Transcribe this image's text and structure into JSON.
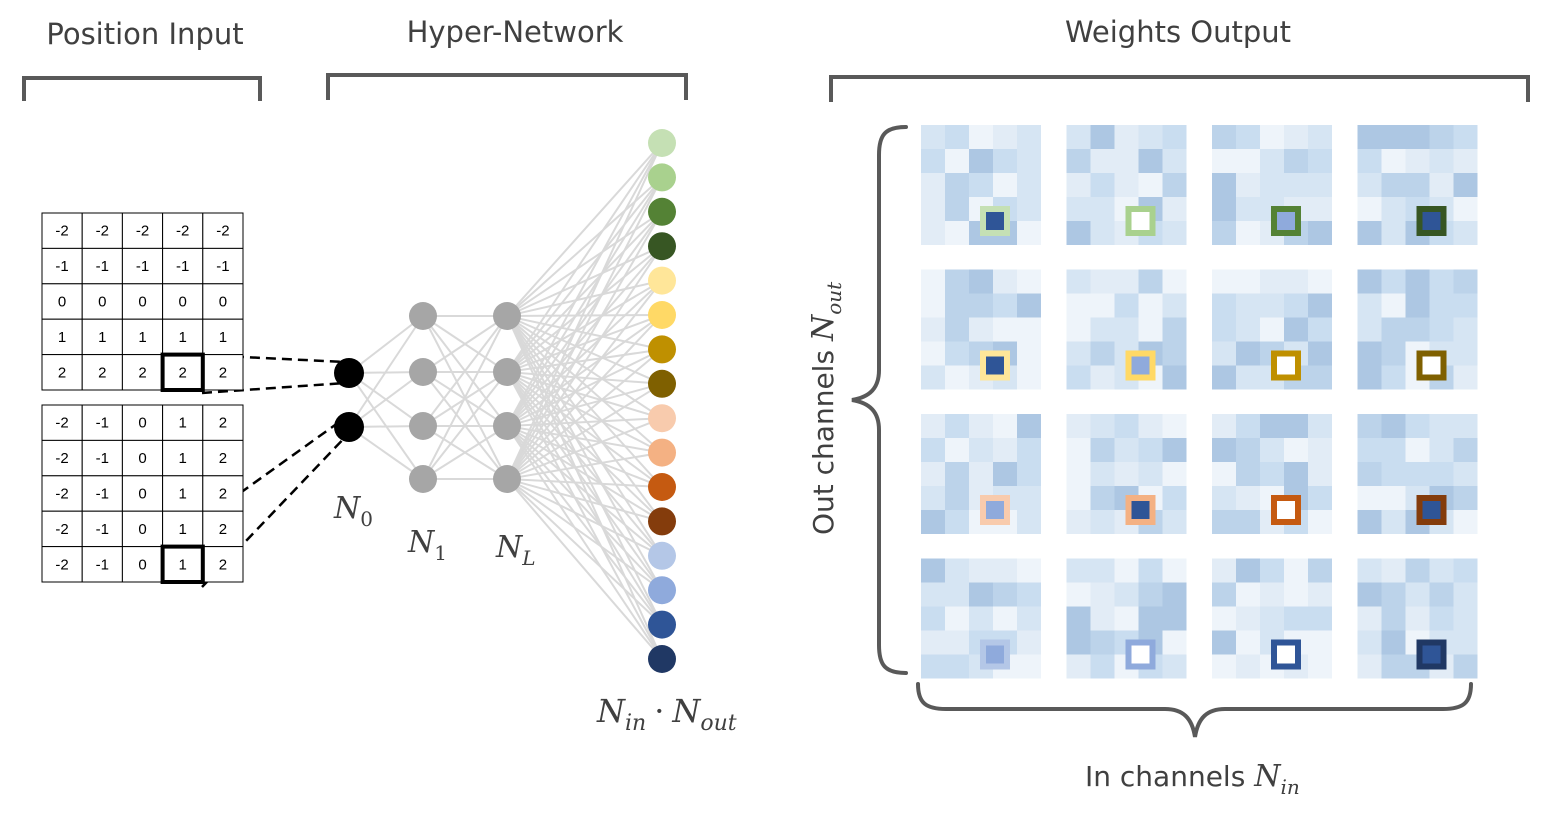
{
  "titles": {
    "position_input": "Position Input",
    "hyper_network": "Hyper-Network",
    "weights_output": "Weights Output"
  },
  "position_grid_y": [
    [
      "-2",
      "-2",
      "-2",
      "-2",
      "-2"
    ],
    [
      "-1",
      "-1",
      "-1",
      "-1",
      "-1"
    ],
    [
      "0",
      "0",
      "0",
      "0",
      "0"
    ],
    [
      "1",
      "1",
      "1",
      "1",
      "1"
    ],
    [
      "2",
      "2",
      "2",
      "2",
      "2"
    ]
  ],
  "position_grid_x": [
    [
      "-2",
      "-1",
      "0",
      "1",
      "2"
    ],
    [
      "-2",
      "-1",
      "0",
      "1",
      "2"
    ],
    [
      "-2",
      "-1",
      "0",
      "1",
      "2"
    ],
    [
      "-2",
      "-1",
      "0",
      "1",
      "2"
    ],
    [
      "-2",
      "-1",
      "0",
      "1",
      "2"
    ]
  ],
  "highlight": {
    "grid_y_cell": [
      4,
      3
    ],
    "grid_x_cell": [
      4,
      3
    ]
  },
  "layer_labels": {
    "n0": {
      "base": "N",
      "sub": "0"
    },
    "n1": {
      "base": "N",
      "sub": "1"
    },
    "nl": {
      "base": "N",
      "sub": "L"
    },
    "output": {
      "base1": "N",
      "sub1": "in",
      "dot": "·",
      "base2": "N",
      "sub2": "out"
    }
  },
  "axis_labels": {
    "out_channels": {
      "text": "Out channels ",
      "base": "N",
      "sub": "out"
    },
    "in_channels": {
      "text": "In channels ",
      "base": "N",
      "sub": "in"
    }
  },
  "colors": {
    "input_node": "#000000",
    "hidden_node": "#a6a6a6",
    "connection": "#d9d9d9",
    "bracket": "#595959",
    "output_nodes": [
      "#c5e0b4",
      "#a9d18e",
      "#548235",
      "#375623",
      "#ffe699",
      "#ffd966",
      "#bf9000",
      "#7f6000",
      "#f8cbad",
      "#f4b183",
      "#c55a11",
      "#843c0c",
      "#b4c7e7",
      "#8faadc",
      "#2f5597",
      "#203864"
    ],
    "kernel_blues": [
      "#eef4fa",
      "#e2ecf6",
      "#d6e5f3",
      "#c9ddf0",
      "#bcd3ea",
      "#adc7e3"
    ],
    "center_fill": [
      "#2f5597",
      "#ffffff",
      "#8faadc"
    ]
  },
  "weights": {
    "rows": 4,
    "cols": 4,
    "kernel_size": 5,
    "center_fill_index": [
      0,
      1,
      2,
      0,
      0,
      2,
      1,
      1,
      2,
      0,
      1,
      0,
      2,
      1,
      1,
      0
    ]
  }
}
